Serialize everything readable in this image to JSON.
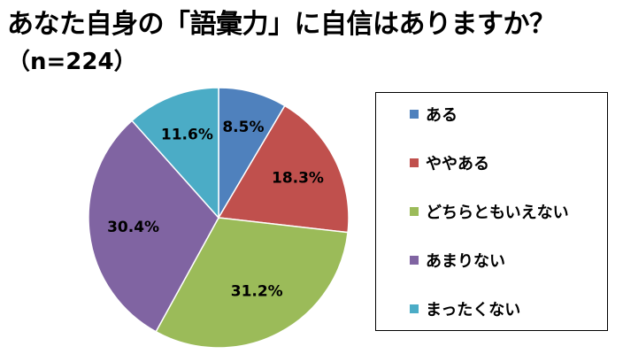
{
  "title": "あなた自身の「語彙力」に自信はありますか？",
  "subtitle": "（n=224）",
  "chart_data": {
    "type": "pie",
    "title": "あなた自身の「語彙力」に自信はありますか？",
    "subtitle": "（n=224）",
    "legend_position": "right",
    "slices": [
      {
        "label": "ある",
        "value": 8.5,
        "display": "8.5%",
        "color": "#4F81BD"
      },
      {
        "label": "ややある",
        "value": 18.3,
        "display": "18.3%",
        "color": "#C0504D"
      },
      {
        "label": "どちらともいえない",
        "value": 31.2,
        "display": "31.2%",
        "color": "#9BBB59"
      },
      {
        "label": "あまりない",
        "value": 30.4,
        "display": "30.4%",
        "color": "#8064A2"
      },
      {
        "label": "まったくない",
        "value": 11.6,
        "display": "11.6%",
        "color": "#4BACC6"
      }
    ]
  }
}
